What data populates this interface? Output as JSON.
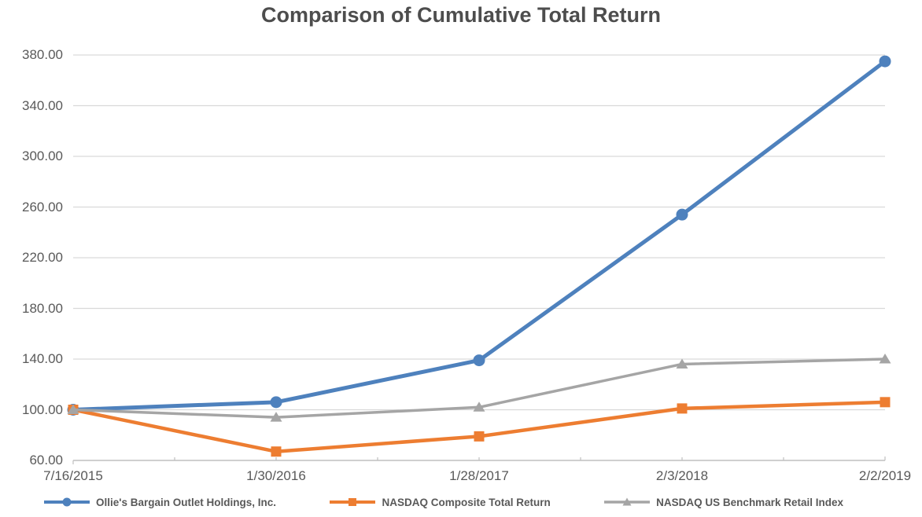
{
  "title": "Comparison of Cumulative Total Return",
  "chart_data": {
    "type": "line",
    "title": "Comparison of Cumulative Total Return",
    "categories": [
      "7/16/2015",
      "1/30/2016",
      "1/28/2017",
      "2/3/2018",
      "2/2/2019"
    ],
    "series": [
      {
        "name": "Ollie's Bargain Outlet Holdings, Inc.",
        "color": "#4E81BD",
        "marker": "circle",
        "line_width": 5,
        "values": [
          100.0,
          106.0,
          139.0,
          254.0,
          375.0
        ]
      },
      {
        "name": "NASDAQ Composite Total Return",
        "color": "#ED7D31",
        "marker": "square",
        "line_width": 4.5,
        "values": [
          100.0,
          67.0,
          79.0,
          101.0,
          106.0
        ]
      },
      {
        "name": "NASDAQ US Benchmark Retail Index",
        "color": "#A5A5A5",
        "marker": "triangle",
        "line_width": 3.5,
        "values": [
          100.0,
          94.0,
          102.0,
          136.0,
          140.0
        ]
      }
    ],
    "ylim": [
      60,
      380
    ],
    "ytick_step": 40,
    "ytick_labels": [
      "60.00",
      "100.00",
      "140.00",
      "180.00",
      "220.00",
      "260.00",
      "300.00",
      "340.00",
      "380.00"
    ],
    "grid": "horizontal",
    "legend_position": "bottom",
    "colors": {
      "gridline": "#D9D9D9",
      "axis_line": "#BFBFBF",
      "axis_text": "#595959",
      "title_text": "#4D4D4D"
    }
  }
}
